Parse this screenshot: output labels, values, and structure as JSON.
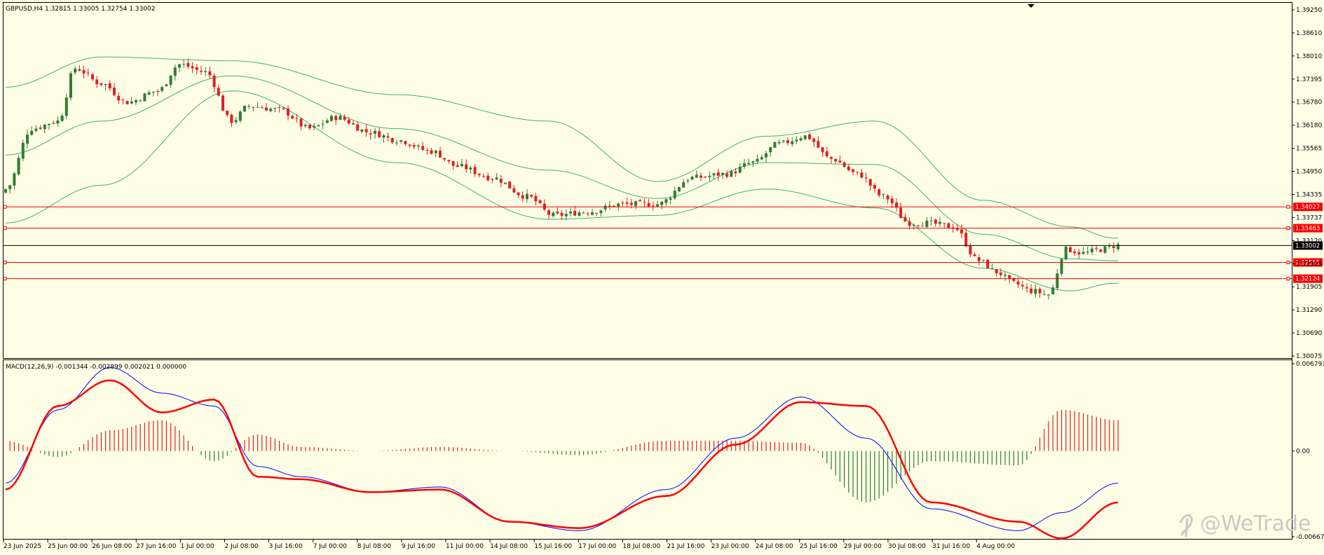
{
  "header": {
    "symbol": "GBPUSD,H4",
    "ohlc": "1.32815 1.33005 1.32754 1.33002"
  },
  "macd_header": {
    "label": "MACD(12,26,9) -0.001344 -0.002899 0.002021 0.000000"
  },
  "watermark": "@WeTrade",
  "colors": {
    "background": "#fefee6",
    "bull": "#2e7d32",
    "bear": "#e02020",
    "band": "#3cb371",
    "level": "#ff0000",
    "current": "#000000",
    "macd": "#0000ff",
    "signal": "#ff0000"
  },
  "chart_data": [
    {
      "type": "candlestick",
      "title": "GBPUSD,H4",
      "ylim": [
        1.30075,
        1.3925
      ],
      "y_ticks": [
        "1.39250",
        "1.38610",
        "1.38010",
        "1.37395",
        "1.36780",
        "1.36180",
        "1.35565",
        "1.34950",
        "1.34335",
        "1.33737",
        "1.33120",
        "1.32505",
        "1.31905",
        "1.31290",
        "1.30690",
        "1.30075"
      ],
      "x_labels": [
        "23 Jun 2025",
        "25 Jun 00:00",
        "26 Jun 08:00",
        "27 Jun 16:00",
        "1 Jul 00:00",
        "2 Jul 08:00",
        "3 Jul 16:00",
        "7 Jul 00:00",
        "8 Jul 08:00",
        "9 Jul 16:00",
        "11 Jul 00:00",
        "14 Jul 08:00",
        "15 Jul 16:00",
        "17 Jul 00:00",
        "18 Jul 08:00",
        "21 Jul 16:00",
        "23 Jul 00:00",
        "24 Jul 08:00",
        "25 Jul 16:00",
        "29 Jul 00:00",
        "30 Jul 08:00",
        "31 Jul 16:00",
        "4 Aug 00:00"
      ],
      "close_path": [
        [
          0,
          1.345
        ],
        [
          6,
          1.361
        ],
        [
          12,
          1.363
        ],
        [
          16,
          1.377
        ],
        [
          22,
          1.373
        ],
        [
          28,
          1.368
        ],
        [
          35,
          1.371
        ],
        [
          40,
          1.378
        ],
        [
          46,
          1.376
        ],
        [
          52,
          1.363
        ],
        [
          56,
          1.367
        ],
        [
          63,
          1.366
        ],
        [
          70,
          1.361
        ],
        [
          76,
          1.364
        ],
        [
          84,
          1.36
        ],
        [
          90,
          1.358
        ],
        [
          98,
          1.355
        ],
        [
          104,
          1.351
        ],
        [
          112,
          1.348
        ],
        [
          120,
          1.343
        ],
        [
          126,
          1.338
        ],
        [
          134,
          1.339
        ],
        [
          142,
          1.341
        ],
        [
          150,
          1.341
        ],
        [
          158,
          1.348
        ],
        [
          166,
          1.349
        ],
        [
          172,
          1.352
        ],
        [
          178,
          1.357
        ],
        [
          184,
          1.359
        ],
        [
          190,
          1.353
        ],
        [
          196,
          1.349
        ],
        [
          202,
          1.343
        ],
        [
          208,
          1.336
        ],
        [
          212,
          1.336
        ],
        [
          218,
          1.335
        ],
        [
          224,
          1.326
        ],
        [
          228,
          1.323
        ],
        [
          232,
          1.32
        ],
        [
          236,
          1.318
        ],
        [
          240,
          1.317
        ],
        [
          244,
          1.329
        ],
        [
          248,
          1.328
        ],
        [
          252,
          1.329
        ],
        [
          256,
          1.3301
        ]
      ],
      "bollinger_upper_anchor": [
        [
          0,
          1.372
        ],
        [
          22,
          1.38
        ],
        [
          52,
          1.379
        ],
        [
          90,
          1.37
        ],
        [
          125,
          1.363
        ],
        [
          150,
          1.347
        ],
        [
          175,
          1.359
        ],
        [
          200,
          1.363
        ],
        [
          225,
          1.342
        ],
        [
          245,
          1.335
        ],
        [
          255,
          1.332
        ]
      ],
      "bollinger_lower_anchor": [
        [
          0,
          1.336
        ],
        [
          22,
          1.346
        ],
        [
          52,
          1.371
        ],
        [
          90,
          1.352
        ],
        [
          125,
          1.337
        ],
        [
          150,
          1.338
        ],
        [
          175,
          1.345
        ],
        [
          200,
          1.34
        ],
        [
          225,
          1.324
        ],
        [
          245,
          1.318
        ],
        [
          255,
          1.32
        ]
      ],
      "levels": [
        {
          "value": 1.34027,
          "label": "1.34027"
        },
        {
          "value": 1.33463,
          "label": "1.33463"
        },
        {
          "value": 1.32555,
          "label": "1.32555"
        },
        {
          "value": 1.32124,
          "label": "1.32124"
        }
      ],
      "current": {
        "value": 1.33002,
        "label": "1.33002"
      }
    },
    {
      "type": "macd",
      "title": "MACD(12,26,9) -0.001344 -0.002899 0.002021 0.000000",
      "ylim": [
        -0.006674,
        0.006791
      ],
      "y_ticks": [
        "0.006791",
        "0.00",
        "-0.006674"
      ],
      "macd_line": [
        [
          0,
          -0.0025
        ],
        [
          12,
          0.0032
        ],
        [
          24,
          0.0065
        ],
        [
          36,
          0.0045
        ],
        [
          48,
          0.0035
        ],
        [
          58,
          -0.0012
        ],
        [
          68,
          -0.002
        ],
        [
          84,
          -0.0032
        ],
        [
          100,
          -0.0028
        ],
        [
          116,
          -0.0055
        ],
        [
          132,
          -0.0062
        ],
        [
          152,
          -0.003
        ],
        [
          168,
          0.001
        ],
        [
          183,
          0.0042
        ],
        [
          198,
          0.001
        ],
        [
          213,
          -0.0045
        ],
        [
          233,
          -0.0062
        ],
        [
          243,
          -0.0048
        ],
        [
          256,
          -0.0025
        ]
      ],
      "signal_line": [
        [
          0,
          -0.003
        ],
        [
          12,
          0.0035
        ],
        [
          24,
          0.0055
        ],
        [
          36,
          0.003
        ],
        [
          48,
          0.004
        ],
        [
          58,
          -0.002
        ],
        [
          68,
          -0.0022
        ],
        [
          84,
          -0.0032
        ],
        [
          100,
          -0.003
        ],
        [
          116,
          -0.0055
        ],
        [
          132,
          -0.006
        ],
        [
          152,
          -0.0035
        ],
        [
          168,
          0.0005
        ],
        [
          183,
          0.0038
        ],
        [
          198,
          0.0035
        ],
        [
          213,
          -0.004
        ],
        [
          233,
          -0.0055
        ],
        [
          243,
          -0.0068
        ],
        [
          256,
          -0.004
        ]
      ]
    }
  ]
}
